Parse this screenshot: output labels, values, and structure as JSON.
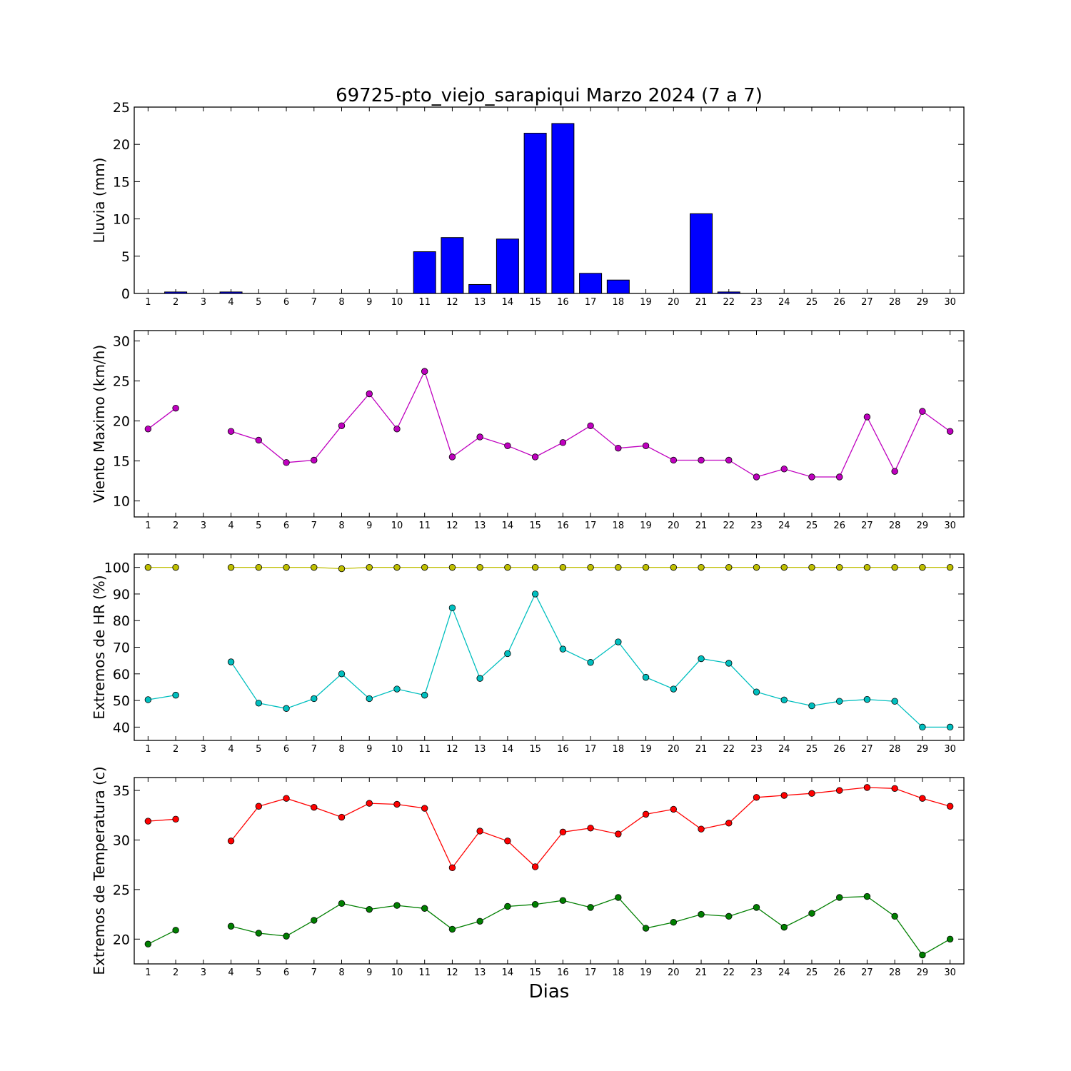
{
  "title": "69725-pto_viejo_sarapiqui Marzo 2024  (7 a 7)",
  "xlabel": "Dias",
  "chart_data": [
    {
      "type": "bar",
      "ylabel": "Lluvia (mm)",
      "ylim": [
        0,
        25
      ],
      "yticks": [
        0,
        5,
        10,
        15,
        20,
        25
      ],
      "categories": [
        1,
        2,
        3,
        4,
        5,
        6,
        7,
        8,
        9,
        10,
        11,
        12,
        13,
        14,
        15,
        16,
        17,
        18,
        19,
        20,
        21,
        22,
        23,
        24,
        25,
        26,
        27,
        28,
        29,
        30
      ],
      "series": [
        {
          "color": "#0000ff",
          "values": [
            0,
            0.2,
            0,
            0.2,
            0,
            0,
            0,
            0,
            0,
            0,
            5.6,
            7.5,
            1.2,
            7.3,
            21.5,
            22.8,
            2.7,
            1.8,
            0,
            0,
            10.7,
            0.2,
            0,
            0,
            0,
            0,
            0,
            0,
            0,
            0
          ]
        }
      ]
    },
    {
      "type": "line",
      "ylabel": "Viento Maximo (km/h)",
      "ylim": [
        8,
        31.3
      ],
      "yticks": [
        10,
        15,
        20,
        25,
        30
      ],
      "categories": [
        1,
        2,
        3,
        4,
        5,
        6,
        7,
        8,
        9,
        10,
        11,
        12,
        13,
        14,
        15,
        16,
        17,
        18,
        19,
        20,
        21,
        22,
        23,
        24,
        25,
        26,
        27,
        28,
        29,
        30
      ],
      "series": [
        {
          "color": "#bf00bf",
          "values": [
            19.0,
            21.6,
            null,
            18.7,
            17.6,
            14.8,
            15.1,
            19.4,
            23.4,
            19.0,
            26.2,
            15.5,
            18.0,
            16.9,
            15.5,
            17.3,
            19.4,
            16.6,
            16.9,
            15.1,
            15.1,
            15.1,
            13.0,
            14.0,
            13.0,
            13.0,
            20.5,
            13.7,
            21.2,
            18.7
          ]
        }
      ]
    },
    {
      "type": "line",
      "ylabel": "Extremos de HR (%)",
      "ylim": [
        35,
        105
      ],
      "yticks": [
        40,
        50,
        60,
        70,
        80,
        90,
        100
      ],
      "categories": [
        1,
        2,
        3,
        4,
        5,
        6,
        7,
        8,
        9,
        10,
        11,
        12,
        13,
        14,
        15,
        16,
        17,
        18,
        19,
        20,
        21,
        22,
        23,
        24,
        25,
        26,
        27,
        28,
        29,
        30
      ],
      "series": [
        {
          "color": "#bfbf00",
          "values": [
            100,
            100,
            null,
            100,
            100,
            100,
            100,
            99.5,
            100,
            100,
            100,
            100,
            100,
            100,
            100,
            100,
            100,
            100,
            100,
            100,
            100,
            100,
            100,
            100,
            100,
            100,
            100,
            100,
            100,
            100
          ]
        },
        {
          "color": "#00bfbf",
          "values": [
            50.3,
            52,
            null,
            64.5,
            49,
            47,
            50.7,
            60,
            50.7,
            54.3,
            52,
            84.8,
            58.3,
            67.6,
            90,
            69.3,
            64.3,
            72,
            58.7,
            54.3,
            65.7,
            64,
            53.2,
            50.2,
            48,
            49.7,
            50.4,
            49.7,
            40,
            40
          ]
        }
      ]
    },
    {
      "type": "line",
      "ylabel": "Extremos de Temperatura (c)",
      "ylim": [
        17.5,
        36.3
      ],
      "yticks": [
        20,
        25,
        30,
        35
      ],
      "categories": [
        1,
        2,
        3,
        4,
        5,
        6,
        7,
        8,
        9,
        10,
        11,
        12,
        13,
        14,
        15,
        16,
        17,
        18,
        19,
        20,
        21,
        22,
        23,
        24,
        25,
        26,
        27,
        28,
        29,
        30
      ],
      "series": [
        {
          "color": "#ff0000",
          "values": [
            31.9,
            32.1,
            null,
            29.9,
            33.4,
            34.2,
            33.3,
            32.3,
            33.7,
            33.6,
            33.2,
            27.2,
            30.9,
            29.9,
            27.3,
            30.8,
            31.2,
            30.6,
            32.6,
            33.1,
            31.1,
            31.7,
            34.3,
            34.5,
            34.7,
            35.0,
            35.3,
            35.2,
            34.2,
            33.4
          ]
        },
        {
          "color": "#007f00",
          "values": [
            19.5,
            20.9,
            null,
            21.3,
            20.6,
            20.3,
            21.9,
            23.6,
            23.0,
            23.4,
            23.1,
            21.0,
            21.8,
            23.3,
            23.5,
            23.9,
            23.2,
            24.2,
            21.1,
            21.7,
            22.5,
            22.3,
            23.2,
            21.2,
            22.6,
            24.2,
            24.3,
            22.3,
            18.4,
            20.0
          ]
        }
      ]
    }
  ]
}
